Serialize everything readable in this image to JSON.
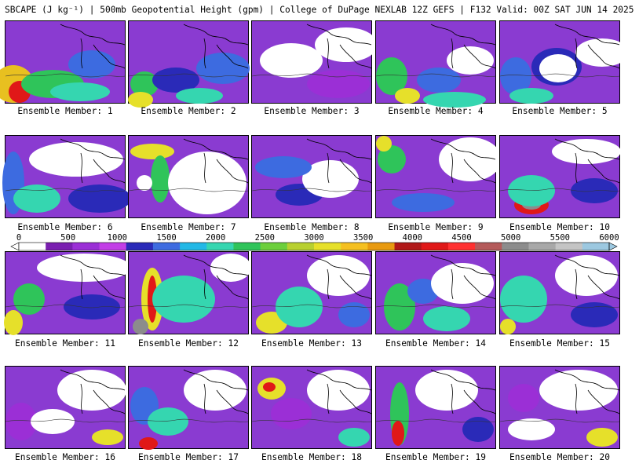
{
  "header": {
    "title": "SBCAPE (J kg⁻¹) | 500mb Geopotential Height (gpm) | College of DuPage NEXLAB 12Z GEFS | F132 Valid: 00Z SAT JUN 14 2025"
  },
  "colorbar": {
    "tick_labels": [
      "0",
      "500",
      "1000",
      "1500",
      "2000",
      "2500",
      "3000",
      "3500",
      "4000",
      "4500",
      "5000",
      "5500",
      "6000"
    ],
    "colors": [
      "#ffffff",
      "#7a1fb0",
      "#9b2fd6",
      "#c23ee6",
      "#2a2ab8",
      "#3d6be0",
      "#22b8e6",
      "#35d6b0",
      "#2fc45a",
      "#6ccf3c",
      "#b8d030",
      "#e6e02a",
      "#f5c020",
      "#e89a10",
      "#b01818",
      "#e01818",
      "#ff3030",
      "#b45a5a",
      "#8c8c8c",
      "#a8a8a8",
      "#c4c4c4",
      "#9cc8e0"
    ]
  },
  "members": [
    {
      "label": "Ensemble Member: 1"
    },
    {
      "label": "Ensemble Member: 2"
    },
    {
      "label": "Ensemble Member: 3"
    },
    {
      "label": "Ensemble Member: 4"
    },
    {
      "label": "Ensemble Member: 5"
    },
    {
      "label": "Ensemble Member: 6"
    },
    {
      "label": "Ensemble Member: 7"
    },
    {
      "label": "Ensemble Member: 8"
    },
    {
      "label": "Ensemble Member: 9"
    },
    {
      "label": "Ensemble Member: 10"
    },
    {
      "label": "Ensemble Member: 11"
    },
    {
      "label": "Ensemble Member: 12"
    },
    {
      "label": "Ensemble Member: 13"
    },
    {
      "label": "Ensemble Member: 14"
    },
    {
      "label": "Ensemble Member: 15"
    },
    {
      "label": "Ensemble Member: 16"
    },
    {
      "label": "Ensemble Member: 17"
    },
    {
      "label": "Ensemble Member: 18"
    },
    {
      "label": "Ensemble Member: 19"
    },
    {
      "label": "Ensemble Member: 20"
    }
  ]
}
